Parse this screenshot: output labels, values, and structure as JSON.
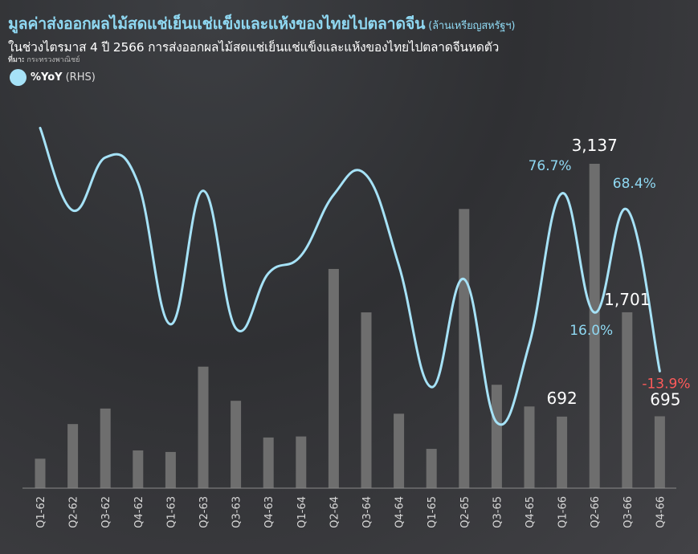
{
  "header": {
    "title": "มูลค่าส่งออกผลไม้สดแช่เย็นแช่แข็งและแห้งของไทยไปตลาดจีน",
    "unit": "(ล้านเหรียญสหรัฐฯ)",
    "subtitle": "ในช่วงไตรมาส 4 ปี 2566 การส่งออกผลไม้สดแช่เย็นแช่แข็งและแห้งของไทยไปตลาดจีนหดตัว",
    "source_label": "ที่มา:",
    "source_text": "กระทรวงพาณิชย์"
  },
  "legend": {
    "series_label": "%YoY",
    "axis_note": "(RHS)"
  },
  "colors": {
    "line": "#a6e2f7",
    "bar": "#6e6e6e",
    "negative_label": "#ff5a5a",
    "positive_label": "#8fd8f2",
    "value_label": "#ffffff"
  },
  "chart_data": {
    "type": "bar",
    "categories": [
      "Q1-62",
      "Q2-62",
      "Q3-62",
      "Q4-62",
      "Q1-63",
      "Q2-63",
      "Q3-63",
      "Q4-63",
      "Q1-64",
      "Q2-64",
      "Q3-64",
      "Q4-64",
      "Q1-65",
      "Q2-65",
      "Q3-65",
      "Q4-65",
      "Q1-66",
      "Q2-66",
      "Q3-66",
      "Q4-66"
    ],
    "series": [
      {
        "name": "",
        "kind": "bar",
        "axis": "left",
        "values": [
          285,
          620,
          770,
          365,
          350,
          1175,
          845,
          490,
          500,
          2120,
          1700,
          720,
          380,
          2700,
          1000,
          790,
          692,
          3137,
          1701,
          695
        ]
      },
      {
        "name": "%YoY",
        "kind": "line",
        "axis": "right",
        "values": [
          110,
          68,
          95,
          82,
          10,
          78,
          8,
          36,
          45,
          76,
          86,
          40,
          -22,
          33,
          -40,
          0,
          76.7,
          16.0,
          68.4,
          -13.9
        ]
      }
    ],
    "data_labels": [
      {
        "series": 0,
        "index": 16,
        "text": "692"
      },
      {
        "series": 0,
        "index": 17,
        "text": "3,137"
      },
      {
        "series": 0,
        "index": 18,
        "text": "1,701"
      },
      {
        "series": 0,
        "index": 19,
        "text": "695"
      },
      {
        "series": 1,
        "index": 16,
        "text": "76.7%"
      },
      {
        "series": 1,
        "index": 17,
        "text": "16.0%"
      },
      {
        "series": 1,
        "index": 18,
        "text": "68.4%"
      },
      {
        "series": 1,
        "index": 19,
        "text": "-13.9%"
      }
    ],
    "ylim_left": [
      0,
      3300
    ],
    "ylim_right": [
      -60,
      120
    ],
    "grid": false
  }
}
